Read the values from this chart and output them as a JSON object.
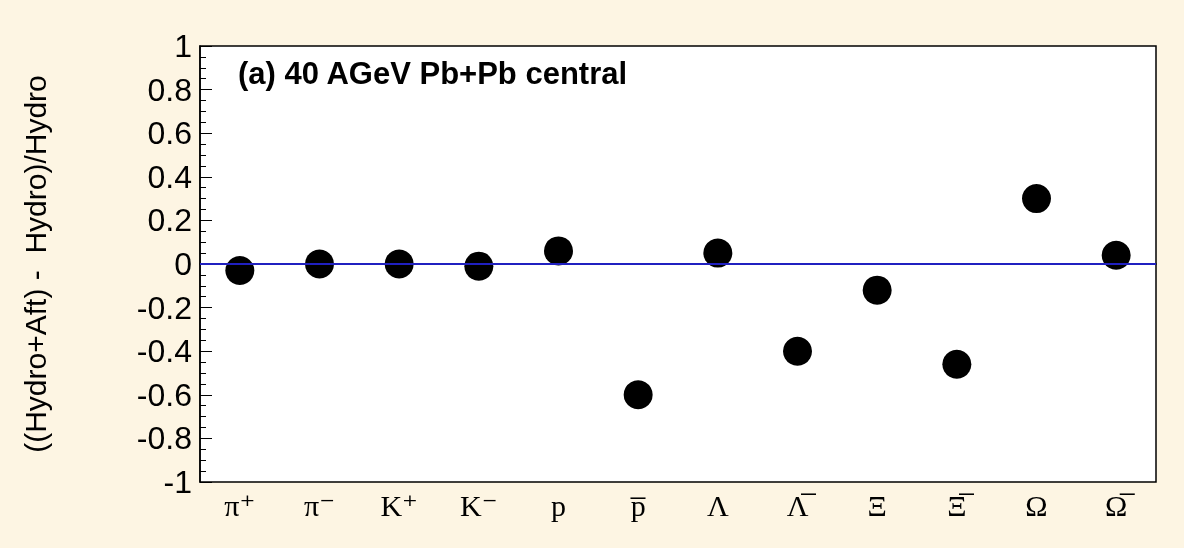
{
  "chart_data": {
    "type": "scatter",
    "categories": [
      "π⁺",
      "π⁻",
      "K⁺",
      "K⁻",
      "p",
      "p̅",
      "Λ",
      "Λ̅",
      "Ξ",
      "Ξ̅",
      "Ω",
      "Ω̅"
    ],
    "values": [
      -0.03,
      0,
      0,
      -0.01,
      0.06,
      -0.6,
      0.05,
      -0.4,
      -0.12,
      -0.46,
      0.3,
      0.04
    ],
    "color": "#000000",
    "marker": "circle",
    "ylabel": "((Hydro+Aft) -  Hydro)/Hydro",
    "annotations": [
      "(a) 40 AGeV Pb+Pb central"
    ],
    "ylim": [
      -1,
      1
    ],
    "yticks": [
      -1,
      -0.8,
      -0.6,
      -0.4,
      -0.2,
      0,
      0.2,
      0.4,
      0.6,
      0.8,
      1
    ],
    "ref_lines": [
      {
        "axis": "y",
        "value": 0,
        "color": "#2020c0"
      }
    ],
    "grid": false
  }
}
